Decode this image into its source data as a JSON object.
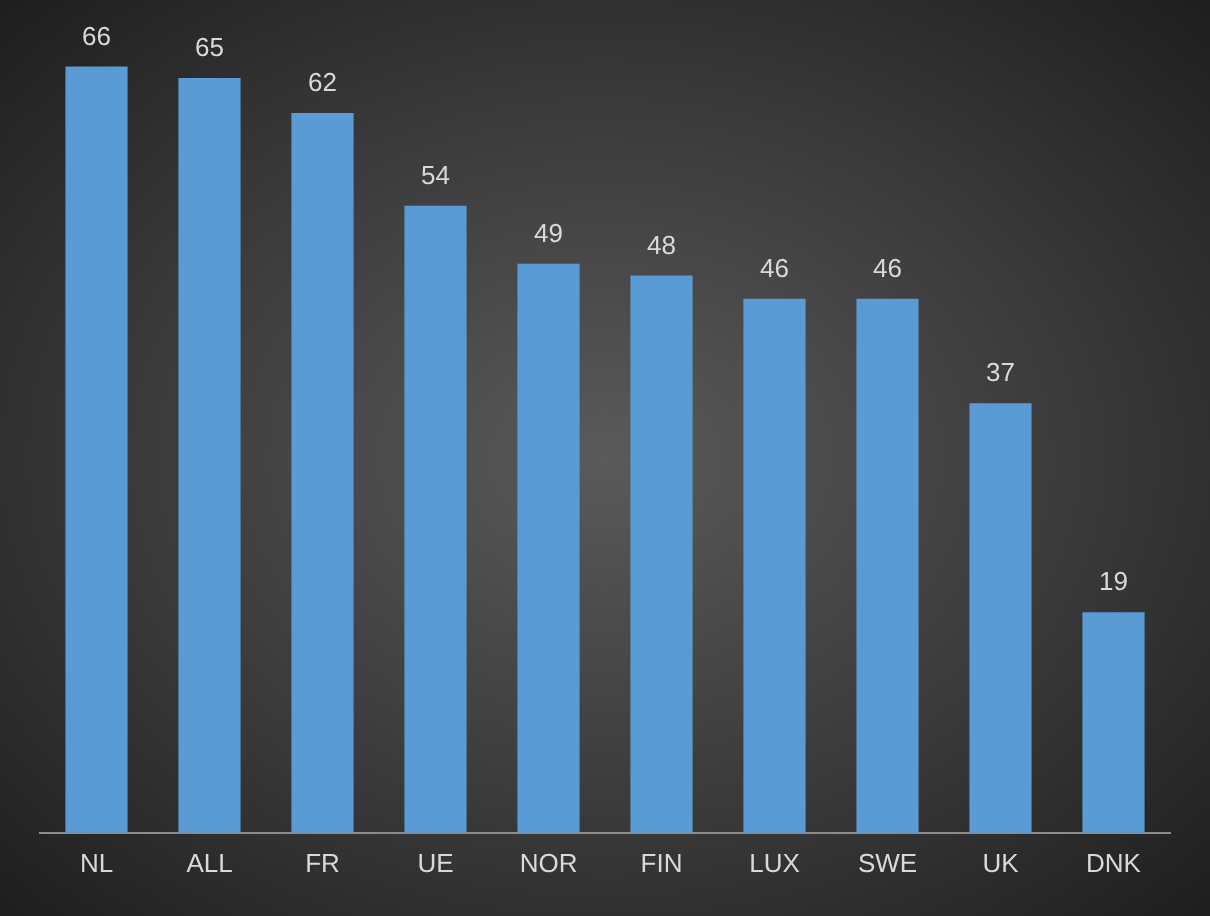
{
  "chart_data": {
    "type": "bar",
    "categories": [
      "NL",
      "ALL",
      "FR",
      "UE",
      "NOR",
      "FIN",
      "LUX",
      "SWE",
      "UK",
      "DNK"
    ],
    "values": [
      66,
      65,
      62,
      54,
      49,
      48,
      46,
      46,
      37,
      19
    ],
    "color": "#5b9bd5",
    "data_labels": true,
    "grid": false,
    "legend": false
  }
}
